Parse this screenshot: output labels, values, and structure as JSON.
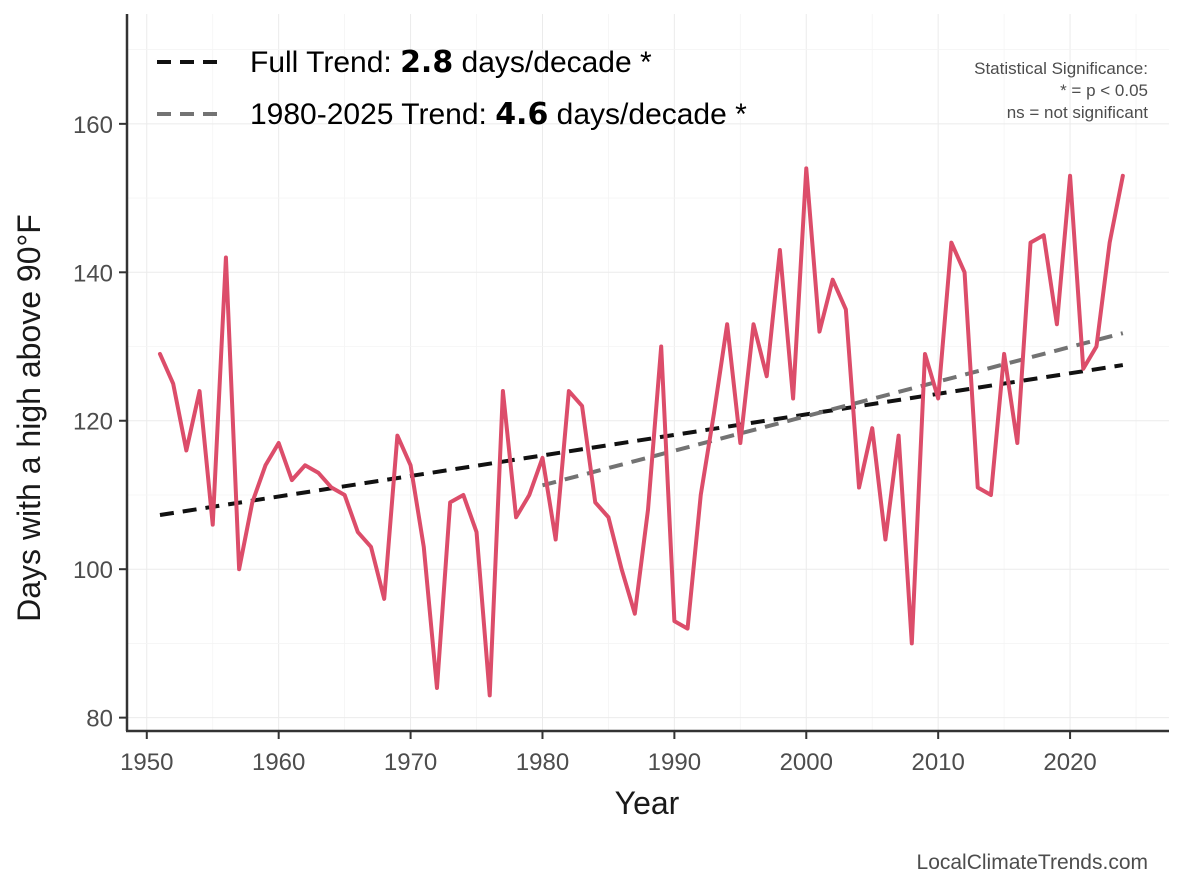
{
  "chart_data": {
    "type": "line",
    "title": "",
    "xlabel": "Year",
    "ylabel": "Days with a high above 90°F",
    "xlim": [
      1948.5,
      2027.5
    ],
    "ylim": [
      78.2,
      174.8
    ],
    "x_ticks": [
      1950,
      1960,
      1970,
      1980,
      1990,
      2000,
      2010,
      2020
    ],
    "y_ticks": [
      80,
      100,
      120,
      140,
      160
    ],
    "grid": true,
    "series": [
      {
        "name": "Days above 90°F",
        "color": "#dc4d6a",
        "x": [
          1951,
          1952,
          1953,
          1954,
          1955,
          1956,
          1957,
          1958,
          1959,
          1960,
          1961,
          1962,
          1963,
          1964,
          1965,
          1966,
          1967,
          1968,
          1969,
          1970,
          1971,
          1972,
          1973,
          1974,
          1975,
          1976,
          1977,
          1978,
          1979,
          1980,
          1981,
          1982,
          1983,
          1984,
          1985,
          1986,
          1987,
          1988,
          1989,
          1990,
          1991,
          1992,
          1993,
          1994,
          1995,
          1996,
          1997,
          1998,
          1999,
          2000,
          2001,
          2002,
          2003,
          2004,
          2005,
          2006,
          2007,
          2008,
          2009,
          2010,
          2011,
          2012,
          2013,
          2014,
          2015,
          2016,
          2017,
          2018,
          2019,
          2020,
          2021,
          2022,
          2023,
          2024
        ],
        "values": [
          129,
          125,
          116,
          124,
          106,
          142,
          100,
          109,
          114,
          117,
          112,
          114,
          113,
          111,
          110,
          105,
          103,
          96,
          118,
          114,
          103,
          84,
          109,
          110,
          105,
          83,
          124,
          107,
          110,
          115,
          104,
          124,
          122,
          109,
          107,
          100,
          94,
          108,
          130,
          93,
          92,
          110,
          121,
          133,
          117,
          133,
          126,
          143,
          123,
          154,
          132,
          139,
          135,
          111,
          119,
          104,
          118,
          90,
          129,
          123,
          144,
          140,
          111,
          110,
          129,
          117,
          144,
          145,
          133,
          153,
          127,
          130,
          144,
          153
        ]
      }
    ],
    "trends": [
      {
        "name": "Full Trend",
        "x": [
          1951,
          2024
        ],
        "values": [
          107.3,
          127.5
        ],
        "color": "#111111",
        "style": "dashed"
      },
      {
        "name": "1980-2025 Trend",
        "x": [
          1980,
          2024
        ],
        "values": [
          111.3,
          131.8
        ],
        "color": "#737373",
        "style": "dashed"
      }
    ],
    "legend": {
      "placement": "top-left",
      "items": [
        {
          "prefix": "Full Trend: ",
          "value": "2.8",
          "suffix": " days/decade *",
          "color": "#111111"
        },
        {
          "prefix": "1980-2025 Trend: ",
          "value": "4.6",
          "suffix": " days/decade *",
          "color": "#737373"
        }
      ]
    },
    "annotation": {
      "placement": "top-right",
      "lines": [
        "Statistical Significance:",
        "* = p < 0.05",
        "ns = not significant"
      ]
    },
    "credit": "LocalClimateTrends.com"
  }
}
